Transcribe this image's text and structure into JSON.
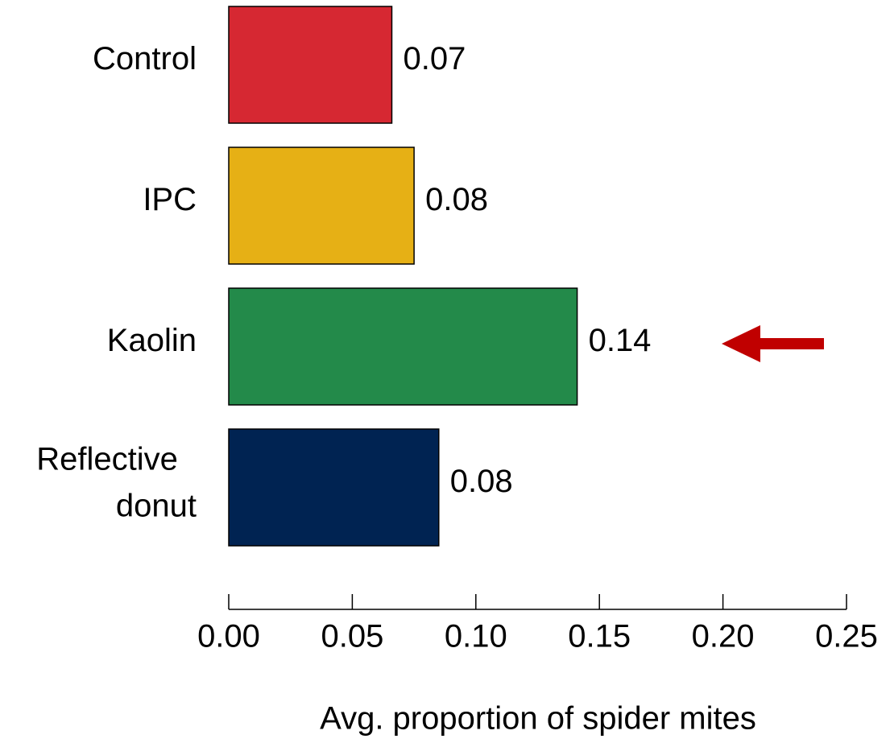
{
  "chart_data": {
    "type": "barh",
    "categories": [
      "Control",
      "IPC",
      "Kaolin",
      "Reflective donut"
    ],
    "values": [
      0.066,
      0.075,
      0.141,
      0.085
    ],
    "value_labels": [
      "0.07",
      "0.08",
      "0.14",
      "0.08"
    ],
    "colors": [
      "#d62832",
      "#e6b015",
      "#238a4a",
      "#002352"
    ],
    "xlabel": "Avg. proportion of spider mites",
    "xlim": [
      0,
      0.25
    ],
    "xticks": [
      {
        "value": 0,
        "label": "0.00"
      },
      {
        "value": 0.05,
        "label": "0.05"
      },
      {
        "value": 0.1,
        "label": "0.10"
      },
      {
        "value": 0.15,
        "label": "0.15"
      },
      {
        "value": 0.2,
        "label": "0.20"
      },
      {
        "value": 0.25,
        "label": "0.25"
      }
    ]
  }
}
